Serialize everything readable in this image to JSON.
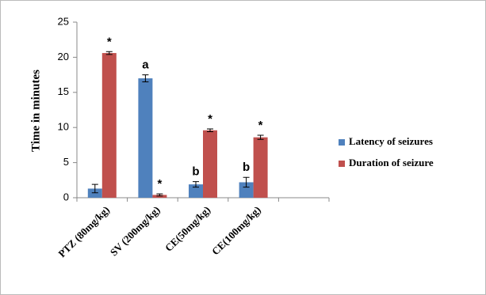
{
  "chart_data": {
    "type": "bar",
    "ylabel": "Time in minutes",
    "categories": [
      "PTZ (80mg/kg)",
      "SV  (200mg/kg)",
      "CE(50mg/kg)",
      "CE(100mg/kg)",
      null
    ],
    "series": [
      {
        "name": "Latency of seizures",
        "color": "#4f81bd",
        "values": [
          1.3,
          17,
          1.9,
          2.2,
          null
        ],
        "errors": [
          0.6,
          0.5,
          0.4,
          0.7,
          null
        ],
        "annotations": [
          null,
          "a",
          "b",
          "b",
          null
        ]
      },
      {
        "name": "Duration of seizure",
        "color": "#c0504d",
        "values": [
          20.6,
          0.4,
          9.6,
          8.6,
          null
        ],
        "errors": [
          0.2,
          0.15,
          0.2,
          0.3,
          null
        ],
        "annotations": [
          "*",
          "*",
          "*",
          "*",
          null
        ]
      }
    ],
    "ylim": [
      0,
      25
    ],
    "yticks": [
      0,
      5,
      10,
      15,
      20,
      25
    ],
    "grid": false,
    "legend": "right"
  }
}
